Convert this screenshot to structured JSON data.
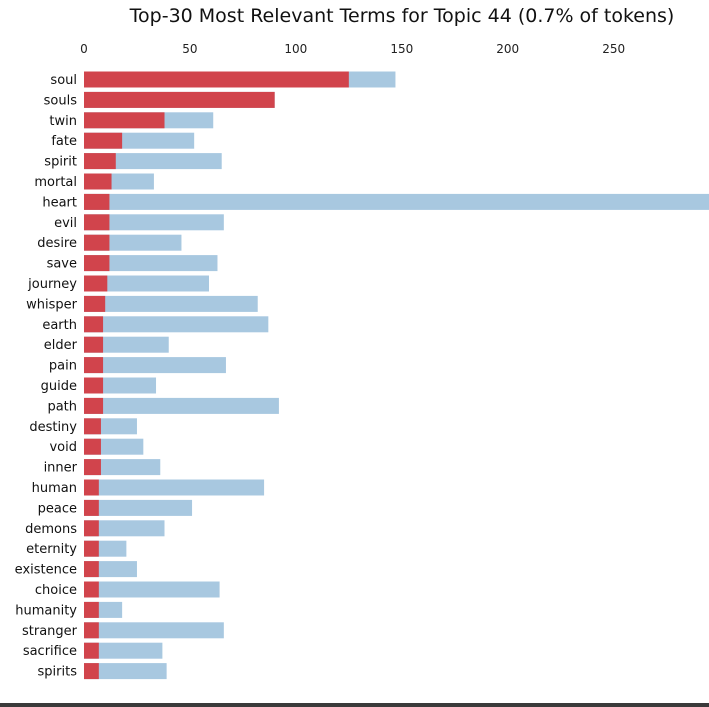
{
  "chart_data": {
    "type": "bar",
    "title": "Top-30 Most Relevant Terms for Topic 44 (0.7% of tokens)",
    "orientation": "horizontal",
    "xlim": [
      0,
      295
    ],
    "x_ticks": [
      0,
      50,
      100,
      150,
      200,
      250
    ],
    "x_axis_position": "top",
    "grid": false,
    "legend": "none",
    "categories": [
      "soul",
      "souls",
      "twin",
      "fate",
      "spirit",
      "mortal",
      "heart",
      "evil",
      "desire",
      "save",
      "journey",
      "whisper",
      "earth",
      "elder",
      "pain",
      "guide",
      "path",
      "destiny",
      "void",
      "inner",
      "human",
      "peace",
      "demons",
      "eternity",
      "existence",
      "choice",
      "humanity",
      "stranger",
      "sacrifice",
      "spirits"
    ],
    "series": [
      {
        "values": [
          147,
          90,
          61,
          52,
          65,
          33,
          295,
          66,
          46,
          63,
          59,
          82,
          87,
          40,
          67,
          34,
          92,
          25,
          28,
          36,
          85,
          51,
          38,
          20,
          25,
          64,
          18,
          66,
          37,
          39
        ],
        "color": "#a8c8e0"
      },
      {
        "values": [
          125,
          90,
          38,
          18,
          15,
          13,
          12,
          12,
          12,
          12,
          11,
          10,
          9,
          9,
          9,
          9,
          9,
          8,
          8,
          8,
          7,
          7,
          7,
          7,
          7,
          7,
          7,
          7,
          7,
          7
        ],
        "color": "#d1444c"
      }
    ]
  }
}
